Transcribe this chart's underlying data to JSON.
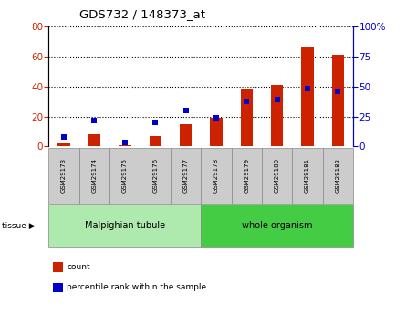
{
  "title": "GDS732 / 148373_at",
  "categories": [
    "GSM29173",
    "GSM29174",
    "GSM29175",
    "GSM29176",
    "GSM29177",
    "GSM29178",
    "GSM29179",
    "GSM29180",
    "GSM29181",
    "GSM29182"
  ],
  "count_values": [
    2,
    8,
    1,
    7,
    15,
    19,
    39,
    41,
    67,
    61
  ],
  "percentile_values": [
    8,
    22,
    3,
    20,
    30,
    24,
    38,
    39,
    48,
    46
  ],
  "tissue_groups": [
    {
      "label": "Malpighian tubule",
      "start": 0,
      "end": 5,
      "color": "#aeeaae"
    },
    {
      "label": "whole organism",
      "start": 5,
      "end": 10,
      "color": "#44cc44"
    }
  ],
  "ylim_left": [
    0,
    80
  ],
  "ylim_right": [
    0,
    100
  ],
  "yticks_left": [
    0,
    20,
    40,
    60,
    80
  ],
  "yticks_right": [
    0,
    25,
    50,
    75,
    100
  ],
  "bar_color": "#cc2200",
  "dot_color": "#0000cc",
  "grid_color": "#000000",
  "bg_color": "#ffffff",
  "plot_bg": "#ffffff",
  "left_axis_color": "#cc2200",
  "right_axis_color": "#0000cc",
  "sample_box_color": "#cccccc",
  "legend_items": [
    {
      "label": "count",
      "color": "#cc2200"
    },
    {
      "label": "percentile rank within the sample",
      "color": "#0000cc"
    }
  ]
}
